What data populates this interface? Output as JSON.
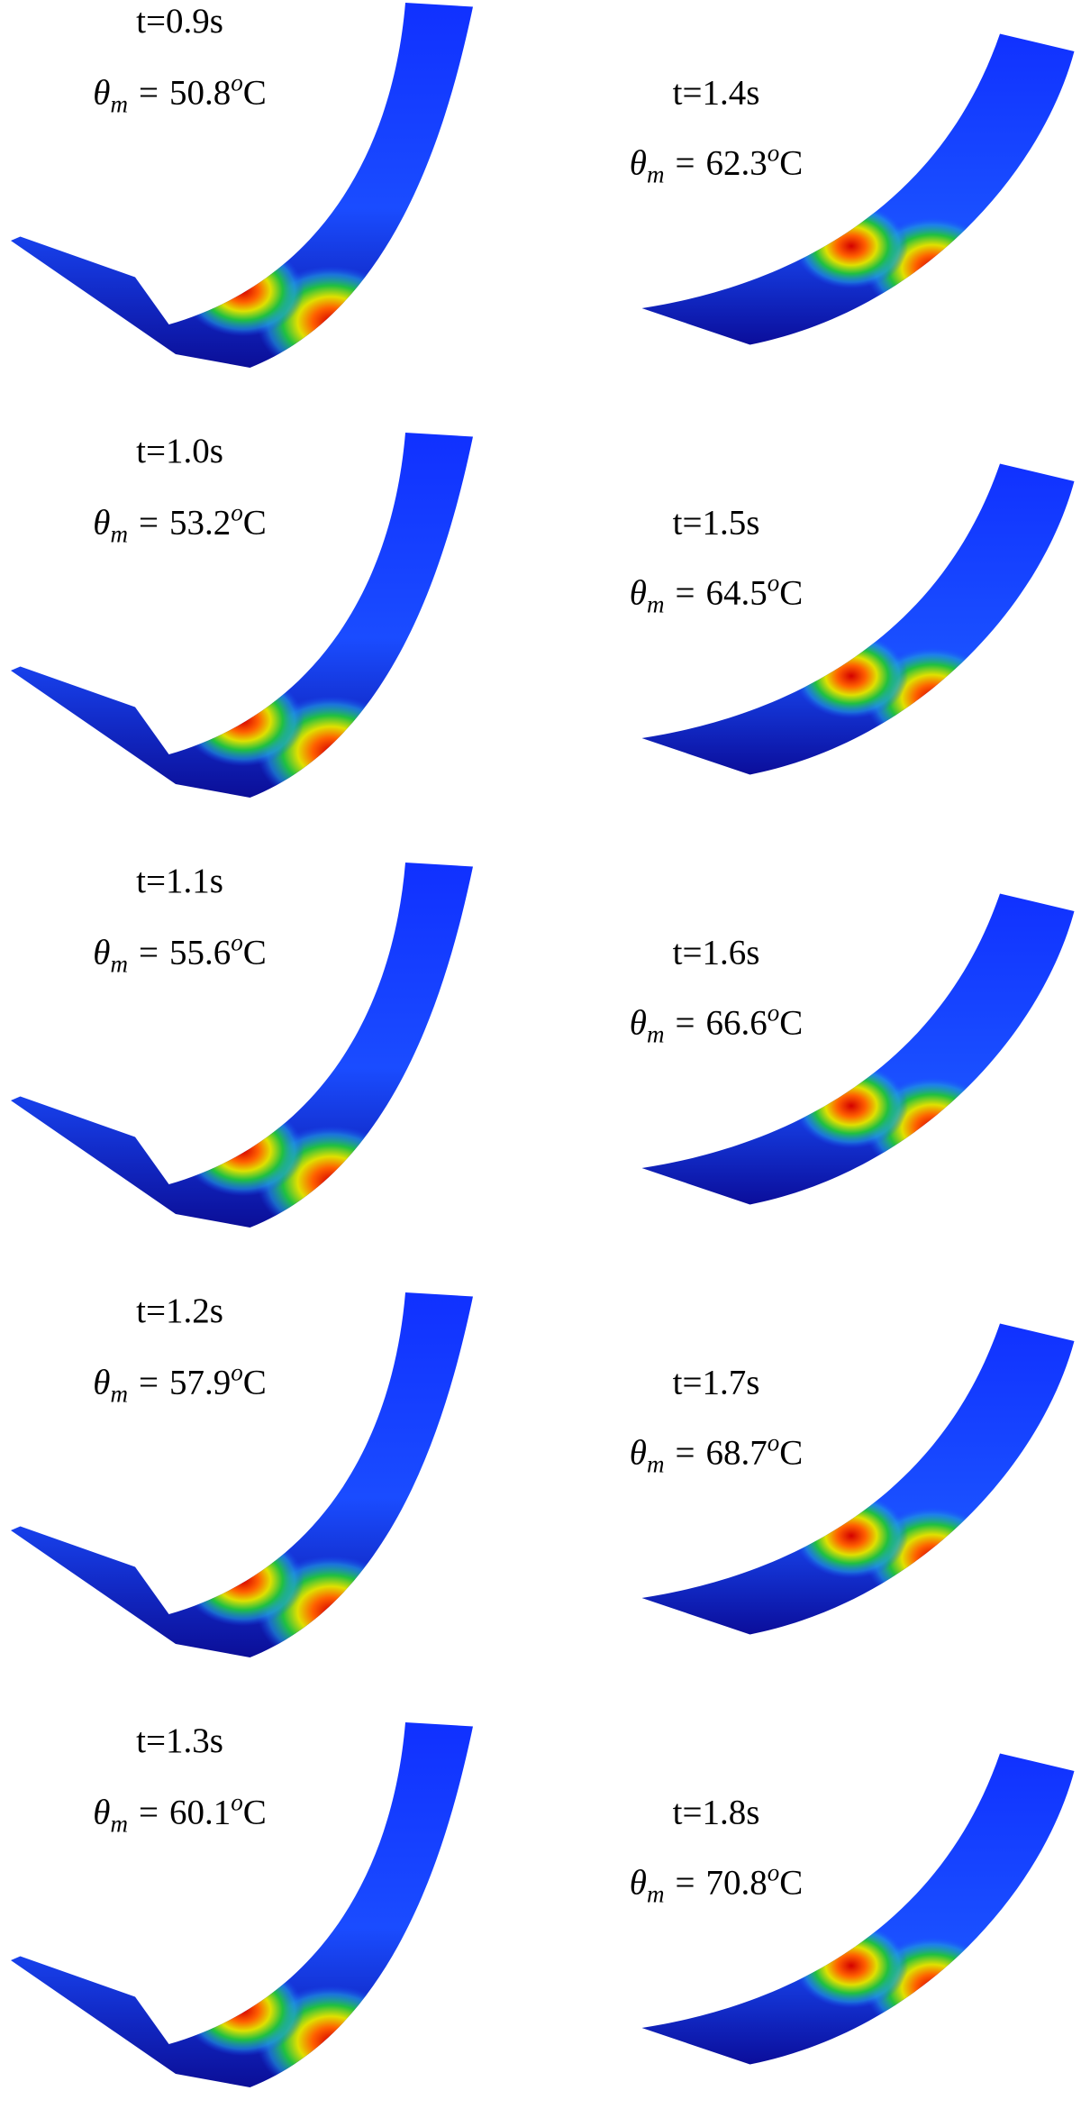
{
  "symbol": "θ",
  "subscript": "m",
  "equals": "=",
  "degree": "o",
  "unit": "C",
  "left_column": [
    {
      "time": "t=0.9s",
      "temperature": "50.8"
    },
    {
      "time": "t=1.0s",
      "temperature": "53.2"
    },
    {
      "time": "t=1.1s",
      "temperature": "55.6"
    },
    {
      "time": "t=1.2s",
      "temperature": "57.9"
    },
    {
      "time": "t=1.3s",
      "temperature": "60.1"
    }
  ],
  "right_column": [
    {
      "time": "t=1.4s",
      "temperature": "62.3"
    },
    {
      "time": "t=1.5s",
      "temperature": "64.5"
    },
    {
      "time": "t=1.6s",
      "temperature": "66.6"
    },
    {
      "time": "t=1.7s",
      "temperature": "68.7"
    },
    {
      "time": "t=1.8s",
      "temperature": "70.8"
    }
  ]
}
